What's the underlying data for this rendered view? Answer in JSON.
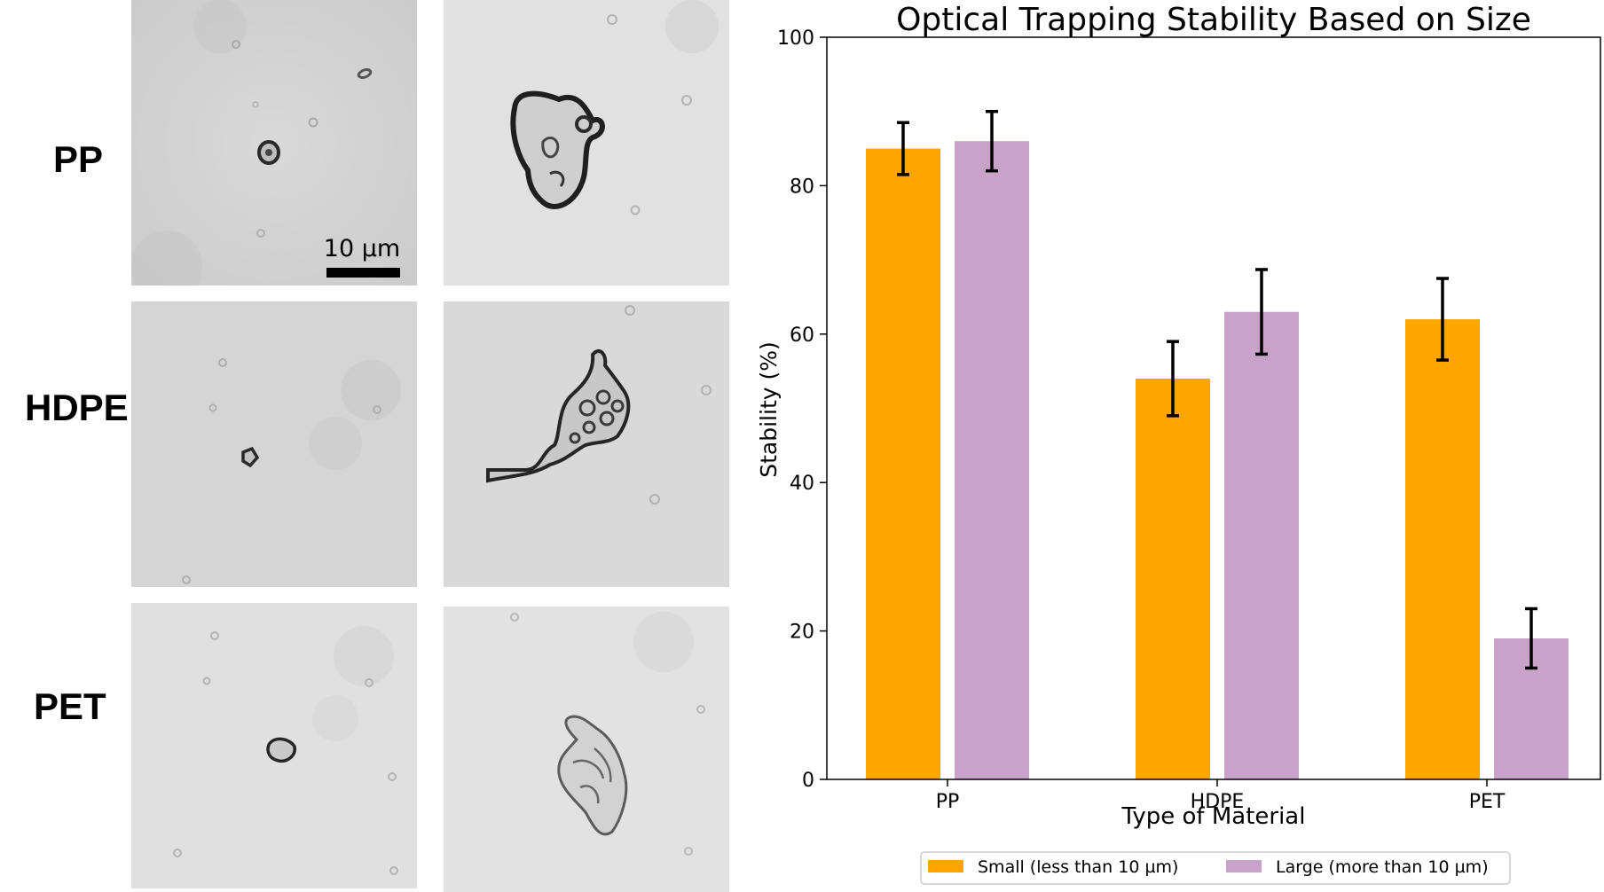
{
  "panels": {
    "rows": [
      "PP",
      "HDPE",
      "PET"
    ],
    "scale_bar_label": "10 µm"
  },
  "chart_data": {
    "type": "bar",
    "title": "Optical Trapping Stability Based on Size",
    "xlabel": "Type of Material",
    "ylabel": "Stability (%)",
    "categories": [
      "PP",
      "HDPE",
      "PET"
    ],
    "ylim": [
      0,
      100
    ],
    "yticks": [
      0,
      20,
      40,
      60,
      80,
      100
    ],
    "legend_position": "bottom-center",
    "grid": false,
    "series": [
      {
        "name": "Small (less than 10 µm)",
        "color": "#FFA500",
        "values": [
          85,
          54,
          62
        ],
        "errors": [
          3.5,
          5,
          5.5
        ]
      },
      {
        "name": "Large (more than 10 µm)",
        "color": "#C8A2C8",
        "values": [
          86,
          63,
          19
        ],
        "errors": [
          4,
          5.7,
          4
        ]
      }
    ]
  }
}
